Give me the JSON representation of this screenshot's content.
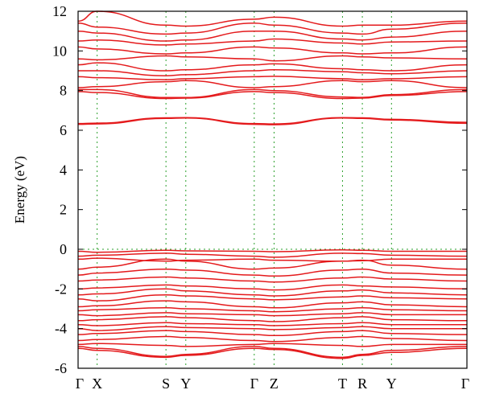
{
  "chart_data": {
    "type": "line",
    "title": "",
    "xlabel": "",
    "ylabel": "Energy (eV)",
    "ylim": [
      -6,
      12
    ],
    "yticks": [
      -6,
      -4,
      -2,
      0,
      2,
      4,
      6,
      8,
      10,
      12
    ],
    "kpath": [
      {
        "label": "Γ",
        "pos": 0.0
      },
      {
        "label": "X",
        "pos": 0.049
      },
      {
        "label": "S",
        "pos": 0.226
      },
      {
        "label": "Y",
        "pos": 0.277
      },
      {
        "label": "Γ",
        "pos": 0.453
      },
      {
        "label": "Z",
        "pos": 0.504
      },
      {
        "label": "T",
        "pos": 0.68
      },
      {
        "label": "R",
        "pos": 0.731
      },
      {
        "label": "Y",
        "pos": 0.806
      },
      {
        "label": "Γ",
        "pos": 1.0
      }
    ],
    "fermi_level": 0,
    "grid": "vertical dotted at high-symmetry points",
    "line_color": "#e41a1c",
    "fermi_color": "#2ca02c",
    "bands": [
      {
        "y": [
          6.3,
          6.32,
          6.6,
          6.62,
          6.3,
          6.28,
          6.62,
          6.6,
          6.52,
          6.35
        ]
      },
      {
        "y": [
          6.34,
          6.36,
          6.63,
          6.64,
          6.34,
          6.32,
          6.64,
          6.63,
          6.55,
          6.4
        ]
      },
      {
        "y": [
          7.95,
          7.9,
          7.6,
          7.62,
          7.95,
          7.9,
          7.6,
          7.62,
          7.75,
          7.95
        ]
      },
      {
        "y": [
          8.05,
          8.05,
          7.65,
          7.65,
          8.05,
          8.0,
          7.68,
          7.66,
          7.8,
          8.05
        ]
      },
      {
        "y": [
          8.15,
          8.2,
          8.45,
          8.5,
          8.15,
          8.2,
          8.5,
          8.45,
          8.5,
          8.15
        ]
      },
      {
        "y": [
          8.7,
          8.65,
          8.55,
          8.6,
          8.7,
          8.72,
          8.6,
          8.55,
          8.6,
          8.7
        ]
      },
      {
        "y": [
          9.0,
          9.0,
          8.75,
          8.8,
          9.0,
          9.05,
          8.95,
          8.9,
          8.85,
          9.0
        ]
      },
      {
        "y": [
          9.3,
          9.4,
          9.0,
          9.05,
          9.3,
          9.35,
          9.1,
          9.05,
          9.0,
          9.3
        ]
      },
      {
        "y": [
          9.6,
          9.55,
          9.75,
          9.7,
          9.6,
          9.5,
          9.75,
          9.7,
          9.65,
          9.6
        ]
      },
      {
        "y": [
          10.2,
          10.1,
          9.85,
          9.9,
          10.2,
          10.15,
          9.9,
          9.85,
          9.9,
          10.2
        ]
      },
      {
        "y": [
          10.5,
          10.55,
          10.3,
          10.35,
          10.5,
          10.6,
          10.4,
          10.35,
          10.45,
          10.5
        ]
      },
      {
        "y": [
          11.0,
          10.9,
          10.5,
          10.55,
          11.0,
          11.0,
          10.6,
          10.55,
          10.7,
          11.0
        ]
      },
      {
        "y": [
          11.4,
          11.2,
          10.85,
          10.9,
          11.4,
          11.3,
          10.9,
          10.85,
          11.1,
          11.4
        ]
      },
      {
        "y": [
          11.5,
          12.0,
          11.3,
          11.25,
          11.6,
          11.7,
          11.25,
          11.3,
          11.3,
          11.5
        ]
      },
      {
        "y": [
          -0.1,
          -0.15,
          -0.05,
          -0.08,
          -0.1,
          -0.12,
          -0.03,
          -0.05,
          -0.1,
          -0.1
        ]
      },
      {
        "y": [
          -0.35,
          -0.3,
          -0.2,
          -0.25,
          -0.35,
          -0.4,
          -0.2,
          -0.22,
          -0.3,
          -0.35
        ]
      },
      {
        "y": [
          -0.5,
          -0.45,
          -0.6,
          -0.55,
          -0.5,
          -0.55,
          -0.6,
          -0.58,
          -0.5,
          -0.5
        ]
      },
      {
        "y": [
          -1.0,
          -0.9,
          -0.5,
          -0.6,
          -1.0,
          -0.95,
          -0.6,
          -0.55,
          -0.8,
          -1.0
        ]
      },
      {
        "y": [
          -1.3,
          -1.2,
          -1.0,
          -1.05,
          -1.3,
          -1.35,
          -1.05,
          -1.0,
          -1.2,
          -1.3
        ]
      },
      {
        "y": [
          -1.6,
          -1.55,
          -1.4,
          -1.45,
          -1.6,
          -1.65,
          -1.45,
          -1.4,
          -1.5,
          -1.6
        ]
      },
      {
        "y": [
          -2.0,
          -1.95,
          -1.8,
          -1.85,
          -2.0,
          -2.05,
          -1.8,
          -1.85,
          -1.9,
          -2.0
        ]
      },
      {
        "y": [
          -2.3,
          -2.25,
          -2.0,
          -2.1,
          -2.3,
          -2.35,
          -2.1,
          -2.05,
          -2.2,
          -2.3
        ]
      },
      {
        "y": [
          -2.5,
          -2.6,
          -2.3,
          -2.35,
          -2.5,
          -2.55,
          -2.4,
          -2.35,
          -2.45,
          -2.5
        ]
      },
      {
        "y": [
          -2.9,
          -2.85,
          -2.6,
          -2.65,
          -2.9,
          -2.95,
          -2.7,
          -2.65,
          -2.8,
          -2.9
        ]
      },
      {
        "y": [
          -3.1,
          -3.05,
          -2.95,
          -3.0,
          -3.1,
          -3.15,
          -3.0,
          -2.95,
          -3.05,
          -3.1
        ]
      },
      {
        "y": [
          -3.3,
          -3.35,
          -3.2,
          -3.25,
          -3.3,
          -3.35,
          -3.25,
          -3.2,
          -3.3,
          -3.3
        ]
      },
      {
        "y": [
          -3.6,
          -3.55,
          -3.4,
          -3.45,
          -3.6,
          -3.65,
          -3.45,
          -3.4,
          -3.55,
          -3.6
        ]
      },
      {
        "y": [
          -3.8,
          -3.85,
          -3.7,
          -3.75,
          -3.8,
          -3.85,
          -3.75,
          -3.7,
          -3.8,
          -3.8
        ]
      },
      {
        "y": [
          -4.0,
          -4.1,
          -3.9,
          -3.95,
          -4.0,
          -4.05,
          -3.95,
          -3.9,
          -4.0,
          -4.0
        ]
      },
      {
        "y": [
          -4.3,
          -4.25,
          -4.1,
          -4.15,
          -4.3,
          -4.35,
          -4.15,
          -4.1,
          -4.25,
          -4.3
        ]
      },
      {
        "y": [
          -4.6,
          -4.55,
          -4.4,
          -4.45,
          -4.6,
          -4.65,
          -4.45,
          -4.4,
          -4.5,
          -4.6
        ]
      },
      {
        "y": [
          -4.8,
          -4.75,
          -4.85,
          -4.9,
          -4.8,
          -4.75,
          -4.85,
          -4.9,
          -4.8,
          -4.8
        ]
      },
      {
        "y": [
          -4.9,
          -5.0,
          -5.4,
          -5.3,
          -4.9,
          -5.0,
          -5.45,
          -5.3,
          -5.1,
          -4.9
        ]
      },
      {
        "y": [
          -5.0,
          -5.1,
          -5.45,
          -5.35,
          -5.0,
          -5.05,
          -5.5,
          -5.35,
          -5.2,
          -5.0
        ]
      }
    ]
  }
}
